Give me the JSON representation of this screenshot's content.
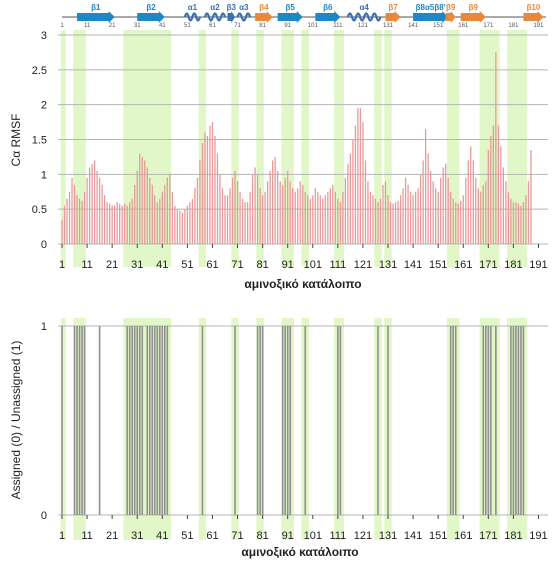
{
  "colors": {
    "highlight": "#e2f7c8",
    "strand": "#1e88c7",
    "helix": "#3a6fb0",
    "strand_orange": "#e8883a",
    "rmsf_bar": "#e79a9a",
    "assigned_bar": "#909090",
    "grid": "#b5b5b5"
  },
  "secondary_structure": {
    "ruler_numbers": [
      "1",
      "11",
      "21",
      "31",
      "41",
      "51",
      "61",
      "71",
      "81",
      "91",
      "101",
      "111",
      "121",
      "131",
      "141",
      "151",
      "161",
      "171",
      "181",
      "191"
    ],
    "elements": [
      {
        "label": "β1",
        "type": "strand",
        "start": 7,
        "end": 22,
        "color": "#1e88c7"
      },
      {
        "label": "β2",
        "type": "strand",
        "start": 31,
        "end": 42,
        "color": "#1e88c7"
      },
      {
        "label": "α1",
        "type": "helix",
        "start": 50,
        "end": 56,
        "color": "#3a6fb0"
      },
      {
        "label": "α2",
        "type": "helix",
        "start": 58,
        "end": 66,
        "color": "#3a6fb0"
      },
      {
        "label": "β3",
        "type": "strand",
        "start": 67,
        "end": 70,
        "color": "#3a6fb0"
      },
      {
        "label": "α3",
        "type": "helix",
        "start": 71,
        "end": 76,
        "color": "#3a6fb0"
      },
      {
        "label": "β4",
        "type": "strand",
        "start": 78,
        "end": 85,
        "color": "#e8883a"
      },
      {
        "label": "β5",
        "type": "strand",
        "start": 87,
        "end": 97,
        "color": "#1e88c7"
      },
      {
        "label": "β6",
        "type": "strand",
        "start": 102,
        "end": 112,
        "color": "#1e88c7"
      },
      {
        "label": "α4",
        "type": "helix",
        "start": 115,
        "end": 128,
        "color": "#3a6fb0"
      },
      {
        "label": "β7",
        "type": "strand",
        "start": 130,
        "end": 136,
        "color": "#e8883a"
      },
      {
        "label": "β8α5β8'",
        "type": "strand",
        "start": 141,
        "end": 155,
        "color": "#1e88c7"
      },
      {
        "label": "β9",
        "type": "strand",
        "start": 154,
        "end": 158,
        "color": "#e8883a"
      },
      {
        "label": "β9",
        "type": "strand",
        "start": 160,
        "end": 170,
        "color": "#e8883a"
      },
      {
        "label": "β10",
        "type": "strand",
        "start": 185,
        "end": 193,
        "color": "#e8883a"
      }
    ]
  },
  "highlight_ranges": [
    [
      1,
      2
    ],
    [
      6,
      10
    ],
    [
      26,
      44
    ],
    [
      56,
      58
    ],
    [
      69,
      71
    ],
    [
      79,
      81
    ],
    [
      89,
      93
    ],
    [
      97,
      99
    ],
    [
      110,
      113
    ],
    [
      126,
      128
    ],
    [
      130,
      132
    ],
    [
      155,
      159
    ],
    [
      168,
      175
    ],
    [
      179,
      186
    ]
  ],
  "chart_data": [
    {
      "type": "bar",
      "ylabel": "Cα RMSF",
      "xlabel": "αμινοξικό κατάλοιπο",
      "ylim": [
        0,
        3
      ],
      "yticks": [
        "0",
        "0.5",
        "1",
        "1.5",
        "2",
        "2.5",
        "3"
      ],
      "xticks": [
        "1",
        "11",
        "21",
        "31",
        "41",
        "51",
        "61",
        "71",
        "81",
        "91",
        "101",
        "111",
        "121",
        "131",
        "141",
        "151",
        "161",
        "171",
        "181",
        "191"
      ],
      "x_range": [
        1,
        194
      ],
      "grid": true,
      "values": [
        0.35,
        0.55,
        0.65,
        0.75,
        0.95,
        0.85,
        0.7,
        0.65,
        0.62,
        0.75,
        0.95,
        1.1,
        1.15,
        1.2,
        1.05,
        0.95,
        0.85,
        0.7,
        0.6,
        0.58,
        0.55,
        0.55,
        0.6,
        0.58,
        0.55,
        0.58,
        0.55,
        0.6,
        0.65,
        0.85,
        1.05,
        1.3,
        1.25,
        1.2,
        1.1,
        0.95,
        0.85,
        0.7,
        0.6,
        0.65,
        0.75,
        0.85,
        0.95,
        1.0,
        0.75,
        0.55,
        0.5,
        0.48,
        0.45,
        0.5,
        0.55,
        0.6,
        0.65,
        0.8,
        0.95,
        1.2,
        1.45,
        1.6,
        1.55,
        1.7,
        1.75,
        1.55,
        1.3,
        1.0,
        0.8,
        0.7,
        0.7,
        0.8,
        0.95,
        1.05,
        0.9,
        0.75,
        0.65,
        0.6,
        0.6,
        0.75,
        1.0,
        1.1,
        1.0,
        0.8,
        0.7,
        0.75,
        0.9,
        1.05,
        1.2,
        1.25,
        1.05,
        0.9,
        0.85,
        0.95,
        1.05,
        0.9,
        0.8,
        0.75,
        0.8,
        0.9,
        0.85,
        0.75,
        0.7,
        0.65,
        0.7,
        0.8,
        0.75,
        0.7,
        0.65,
        0.7,
        0.75,
        0.8,
        0.85,
        0.75,
        0.65,
        0.6,
        0.75,
        0.95,
        1.15,
        1.3,
        1.5,
        1.7,
        1.95,
        1.95,
        1.75,
        1.2,
        0.9,
        0.75,
        0.7,
        0.65,
        0.6,
        0.65,
        0.85,
        0.9,
        0.7,
        0.6,
        0.58,
        0.6,
        0.62,
        0.7,
        0.8,
        0.95,
        0.85,
        0.75,
        0.7,
        0.75,
        0.8,
        1.0,
        1.2,
        1.65,
        1.3,
        1.05,
        0.9,
        0.8,
        0.75,
        0.95,
        1.1,
        1.15,
        0.95,
        0.75,
        0.65,
        0.6,
        0.58,
        0.62,
        0.7,
        0.95,
        1.2,
        1.4,
        1.2,
        0.95,
        0.8,
        0.75,
        0.85,
        0.9,
        1.35,
        1.55,
        1.7,
        2.75,
        1.7,
        1.4,
        1.1,
        0.9,
        0.75,
        0.65,
        0.6,
        0.6,
        0.58,
        0.55,
        0.6,
        0.7,
        0.9,
        1.35
      ]
    },
    {
      "type": "bar",
      "ylabel": "Assigned (0) / Unassigned (1)",
      "xlabel": "αμινοξικό κατάλοιπο",
      "ylim": [
        0,
        1
      ],
      "yticks": [
        "0",
        "1"
      ],
      "xticks": [
        "1",
        "11",
        "21",
        "31",
        "41",
        "51",
        "61",
        "71",
        "81",
        "91",
        "101",
        "111",
        "121",
        "131",
        "141",
        "151",
        "161",
        "171",
        "181",
        "191"
      ],
      "x_range": [
        1,
        194
      ],
      "grid": true,
      "unassigned_residues": [
        1,
        6,
        7,
        8,
        9,
        10,
        16,
        27,
        28,
        29,
        30,
        31,
        32,
        33,
        35,
        36,
        37,
        38,
        39,
        40,
        41,
        42,
        43,
        57,
        70,
        79,
        80,
        81,
        89,
        90,
        91,
        92,
        98,
        111,
        112,
        127,
        131,
        156,
        157,
        158,
        169,
        170,
        171,
        172,
        174,
        180,
        181,
        182,
        183,
        184,
        185
      ]
    }
  ]
}
